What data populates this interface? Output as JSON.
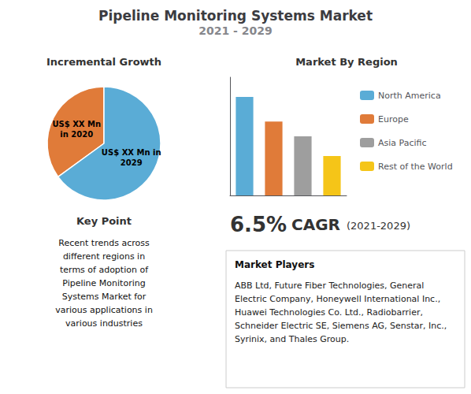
{
  "chart_data": [
    {
      "type": "pie",
      "title": "Pipeline Monitoring Systems Market",
      "subtitle": "2021 - 2029",
      "categories": [
        "US$ XX Mn\nin 2020",
        "US$ XX Mn in\n2029"
      ],
      "values": [
        35,
        65
      ],
      "colors": [
        "#e07b39",
        "#5aacd6"
      ],
      "annotations": [
        "Incremental Growth",
        "Key Point",
        "Recent trends across\ndifferent regions in\nterms of adoption of\nPipeline Monitoring\nSystems Market for\nvarious applications in\nvarious industries"
      ]
    },
    {
      "type": "bar",
      "title": "Market By Region",
      "categories": [
        "North America",
        "Europe",
        "Asia Pacific",
        "Rest of the World"
      ],
      "values": [
        100,
        75,
        60,
        40
      ],
      "colors": [
        "#5aacd6",
        "#e07b39",
        "#9e9e9e",
        "#f5c518"
      ],
      "ylim": [
        0,
        120
      ],
      "grid": false,
      "tick_labels": false,
      "legend": "right",
      "annotations": [
        "6.5%",
        "CAGR",
        "(2021-2029)",
        "Market Players",
        "ABB Ltd, Future Fiber Technologies, General Electric Company, Honeywell International Inc., Huawei Technologies Co. Ltd., Radiobarrier, Schneider Electric SE, Siemens AG, Senstar, Inc., Syrinix, and Thales Group."
      ]
    }
  ]
}
